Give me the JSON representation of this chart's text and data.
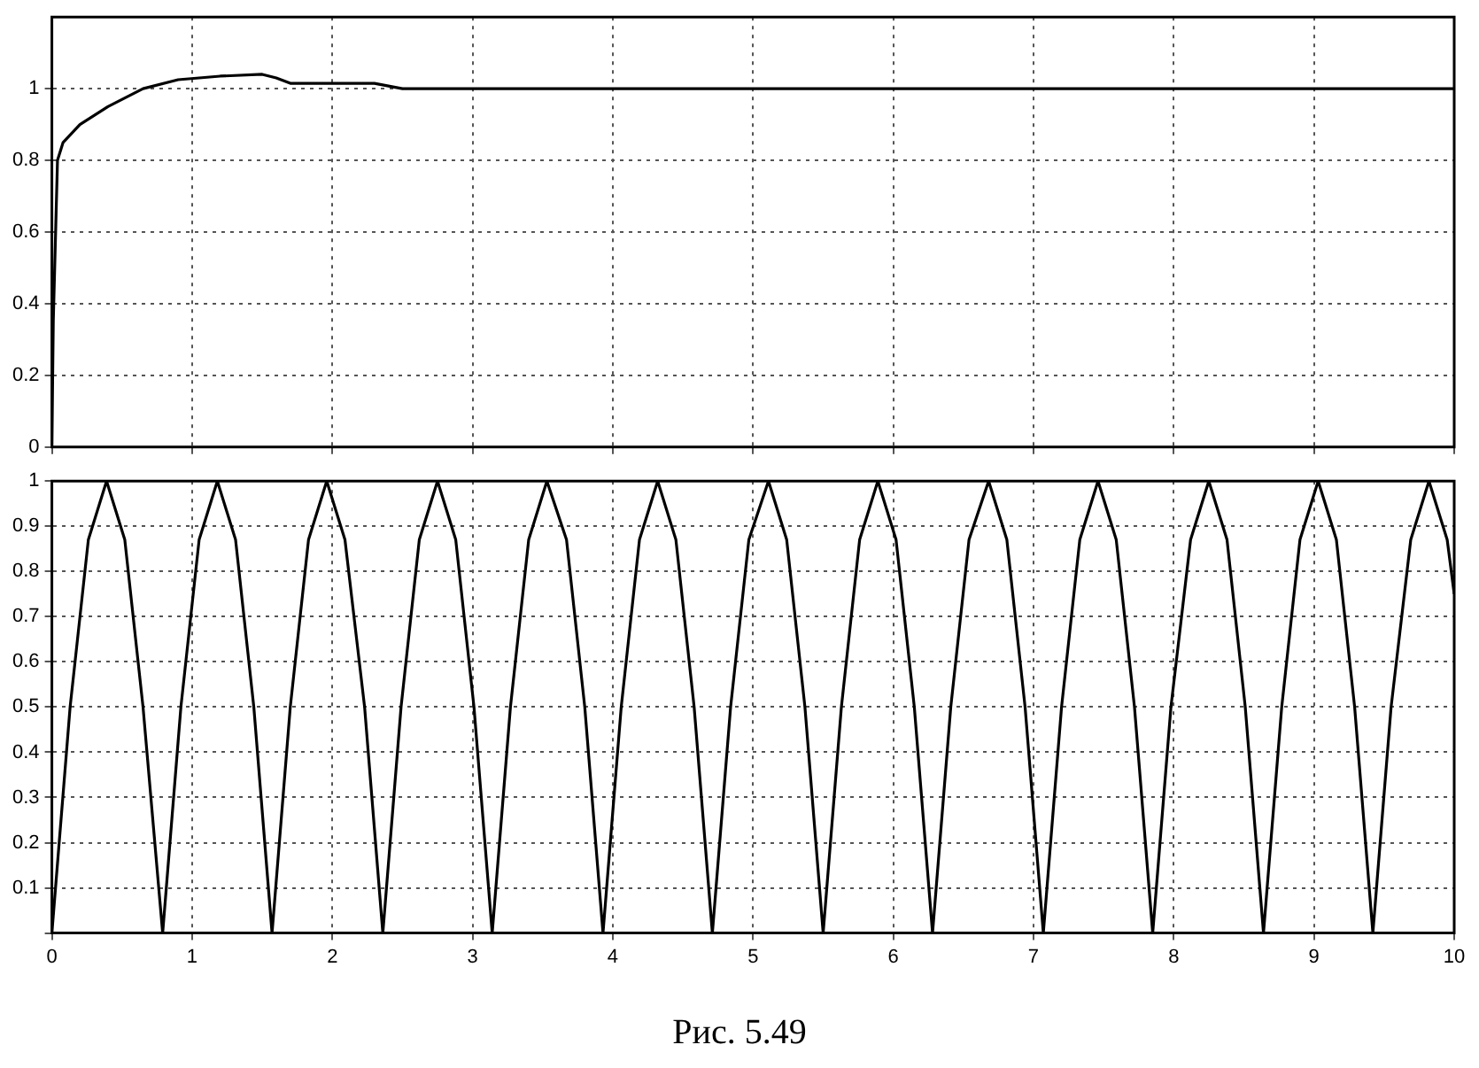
{
  "chart_data": [
    {
      "type": "line",
      "x": [
        0,
        0.01,
        0.04,
        0.08,
        0.2,
        0.4,
        0.65,
        0.9,
        1.2,
        1.5,
        1.6,
        1.7,
        2.0,
        2.3,
        2.5,
        3.0,
        4.0,
        5.0,
        6.0,
        7.0,
        8.0,
        9.0,
        10.0
      ],
      "series": [
        {
          "color": "#000000",
          "values": [
            0,
            0.35,
            0.8,
            0.85,
            0.9,
            0.95,
            1.0,
            1.025,
            1.035,
            1.04,
            1.03,
            1.015,
            1.015,
            1.015,
            1.0,
            1.0,
            1.0,
            1.0,
            1.0,
            1.0,
            1.0,
            1.0,
            1.0
          ]
        }
      ],
      "xlim": [
        0,
        10
      ],
      "xticks": [
        0,
        1,
        2,
        3,
        4,
        5,
        6,
        7,
        8,
        9,
        10
      ],
      "ylim": [
        0,
        1.2
      ],
      "yticks": [
        0,
        0.2,
        0.4,
        0.6,
        0.8,
        1
      ],
      "grid": true,
      "tick_labels": "y",
      "marker": "none",
      "line_style": "solid"
    },
    {
      "type": "line",
      "x": [
        0,
        0.13,
        0.26,
        0.39,
        0.52,
        0.65,
        0.79,
        0.92,
        1.05,
        1.18,
        1.31,
        1.44,
        1.57,
        1.7,
        1.83,
        1.96,
        2.09,
        2.23,
        2.36,
        2.49,
        2.62,
        2.75,
        2.88,
        3.01,
        3.14,
        3.27,
        3.4,
        3.53,
        3.67,
        3.8,
        3.93,
        4.06,
        4.19,
        4.32,
        4.45,
        4.58,
        4.71,
        4.84,
        4.97,
        5.11,
        5.24,
        5.37,
        5.5,
        5.63,
        5.76,
        5.89,
        6.02,
        6.15,
        6.28,
        6.41,
        6.54,
        6.68,
        6.81,
        6.94,
        7.07,
        7.2,
        7.33,
        7.46,
        7.59,
        7.72,
        7.85,
        7.98,
        8.12,
        8.25,
        8.38,
        8.51,
        8.64,
        8.77,
        8.9,
        9.03,
        9.16,
        9.29,
        9.42,
        9.55,
        9.69,
        9.82,
        9.95,
        10.0
      ],
      "series": [
        {
          "color": "#000000",
          "values": [
            0,
            0.5,
            0.87,
            1,
            0.87,
            0.5,
            0,
            0.5,
            0.87,
            1,
            0.87,
            0.5,
            0,
            0.5,
            0.87,
            1,
            0.87,
            0.5,
            0,
            0.5,
            0.87,
            1,
            0.87,
            0.5,
            0,
            0.5,
            0.87,
            1,
            0.87,
            0.5,
            0,
            0.5,
            0.87,
            1,
            0.87,
            0.5,
            0,
            0.5,
            0.87,
            1,
            0.87,
            0.5,
            0,
            0.5,
            0.87,
            1,
            0.87,
            0.5,
            0,
            0.5,
            0.87,
            1,
            0.87,
            0.5,
            0,
            0.5,
            0.87,
            1,
            0.87,
            0.5,
            0,
            0.5,
            0.87,
            1,
            0.87,
            0.5,
            0,
            0.5,
            0.87,
            1,
            0.87,
            0.5,
            0,
            0.5,
            0.87,
            1,
            0.87,
            0.75
          ]
        }
      ],
      "xlim": [
        0,
        10
      ],
      "xticks": [
        0,
        1,
        2,
        3,
        4,
        5,
        6,
        7,
        8,
        9,
        10
      ],
      "ylim": [
        0,
        1
      ],
      "yticks": [
        {
          "value": 0,
          "label": null
        },
        0.1,
        0.2,
        0.3,
        0.4,
        0.5,
        0.6,
        0.7,
        0.8,
        0.9,
        1
      ],
      "grid": true,
      "marker": "none",
      "line_style": "solid",
      "annotations": [
        "Рис. 5.49"
      ]
    }
  ]
}
